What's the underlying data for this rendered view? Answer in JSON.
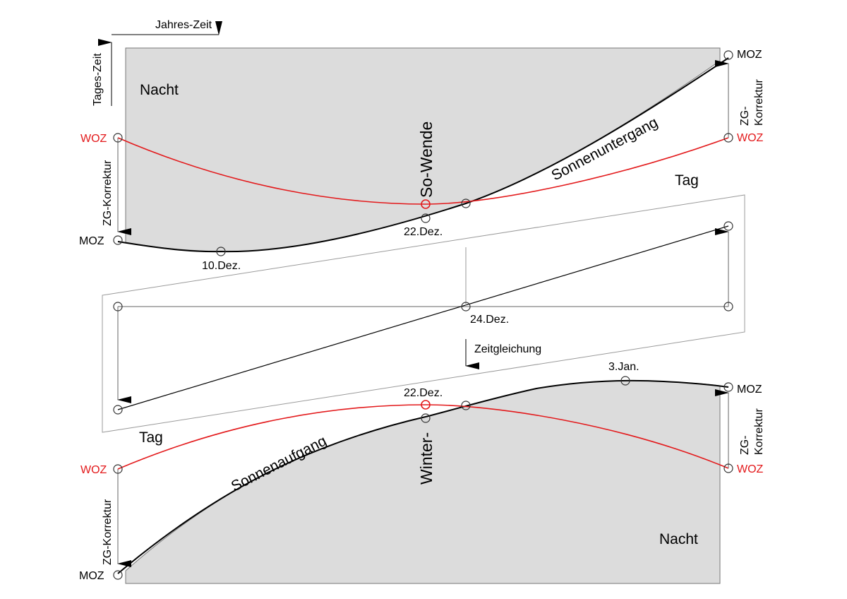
{
  "axes": {
    "x_label": "Jahres-Zeit",
    "y_label": "Tages-Zeit"
  },
  "labels": {
    "night_top": "Nacht",
    "night_bottom": "Nacht",
    "day_top": "Tag",
    "day_bottom": "Tag",
    "sunset": "Sonnenuntergang",
    "sunrise": "Sonnenaufgang",
    "summer_solstice": "So-Wende",
    "winter_solstice": "Winter-",
    "equation_of_time": "Zeitgleichung",
    "woz": "WOZ",
    "moz": "MOZ",
    "zg_korrektur": "ZG-Korrektur",
    "zg_korrektur_top": "ZG-",
    "zg_korrektur_bottom": "Korrektur"
  },
  "dates": {
    "dez10": "10.Dez.",
    "dez22_top": "22.Dez.",
    "dez22_bottom": "22.Dez.",
    "dez24": "24.Dez.",
    "jan3": "3.Jan."
  },
  "colors": {
    "woz_curve": "#e31a1c",
    "night_fill": "#dcdcdc",
    "line": "#000000",
    "frame": "#9a9a9a"
  }
}
